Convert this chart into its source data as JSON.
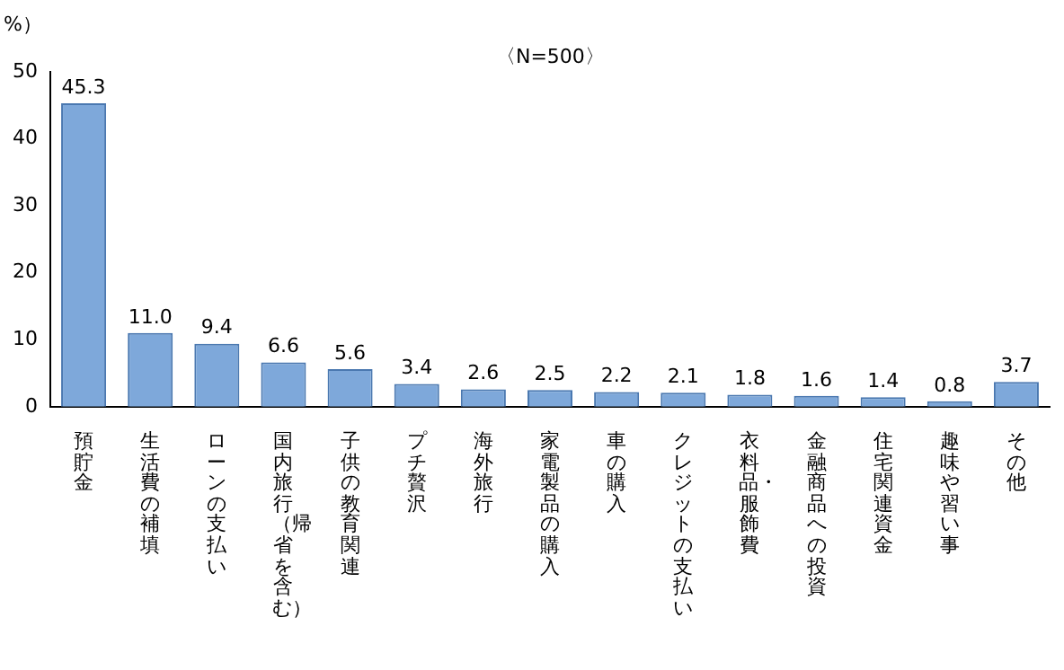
{
  "chart_data": {
    "type": "bar",
    "title": "〈N=500〉",
    "ylabel": "%）",
    "categories": [
      "預貯金",
      "生活費の補填",
      "ローンの支払い",
      "国内旅行（帰省を含む）",
      "子供の教育関連",
      "プチ贅沢",
      "海外旅行",
      "家電製品の購入",
      "車の購入",
      "クレジットの支払い",
      "衣料品・服飾費",
      "金融商品への投資",
      "住宅関連資金",
      "趣味や習い事",
      "その他"
    ],
    "values": [
      45.3,
      11.0,
      9.4,
      6.6,
      5.6,
      3.4,
      2.6,
      2.5,
      2.2,
      2.1,
      1.8,
      1.6,
      1.4,
      0.8,
      3.7
    ],
    "value_labels": [
      "45.3",
      "11.0",
      "9.4",
      "6.6",
      "5.6",
      "3.4",
      "2.6",
      "2.5",
      "2.2",
      "2.1",
      "1.8",
      "1.6",
      "1.4",
      "0.8",
      "3.7"
    ],
    "color": "#7ea8da",
    "ylim": [
      0,
      50
    ],
    "yticks": [
      0,
      10,
      20,
      30,
      40,
      50
    ],
    "grid": false,
    "legend": false
  }
}
